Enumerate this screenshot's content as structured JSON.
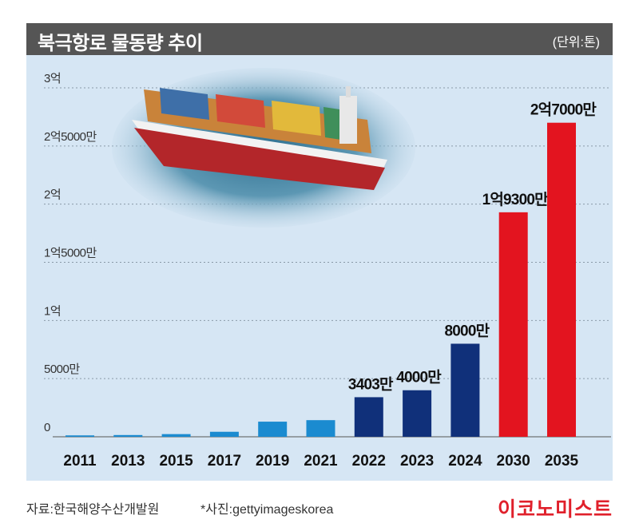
{
  "header": {
    "title": "북극항로 물동량 추이",
    "unit": "(단위:톤)"
  },
  "footer": {
    "source": "자료:한국해양수산개발원",
    "photo": "*사진:gettyimageskorea",
    "brand": "이코노미스트"
  },
  "colors": {
    "light_blue": "#1b8bd0",
    "dark_blue": "#10307a",
    "red": "#e3141f",
    "panel_bg": "#d6e6f4",
    "title_bg": "#555555"
  },
  "chart_data": {
    "type": "bar",
    "categories": [
      "2011",
      "2013",
      "2015",
      "2017",
      "2019",
      "2021",
      "2022",
      "2023",
      "2024",
      "2030",
      "2035"
    ],
    "values": [
      1200000,
      1500000,
      2300000,
      4300000,
      13000000,
      14300000,
      34030000,
      40000000,
      80000000,
      193000000,
      270000000
    ],
    "bar_groups": [
      "light_blue",
      "light_blue",
      "light_blue",
      "light_blue",
      "light_blue",
      "light_blue",
      "dark_blue",
      "dark_blue",
      "dark_blue",
      "red",
      "red"
    ],
    "data_labels": [
      "",
      "",
      "",
      "",
      "",
      "",
      "3403만",
      "4000만",
      "8000만",
      "1억9300만",
      "2억7000만"
    ],
    "y_ticks": [
      {
        "value": 0,
        "label": "0"
      },
      {
        "value": 50000000,
        "label": "5000만"
      },
      {
        "value": 100000000,
        "label": "1억"
      },
      {
        "value": 150000000,
        "label": "1억5000만"
      },
      {
        "value": 200000000,
        "label": "2억"
      },
      {
        "value": 250000000,
        "label": "2억5000만"
      },
      {
        "value": 300000000,
        "label": "3억"
      }
    ],
    "ylim": [
      0,
      300000000
    ],
    "grid": true,
    "title": "북극항로 물동량 추이",
    "ylabel": "(단위:톤)"
  }
}
